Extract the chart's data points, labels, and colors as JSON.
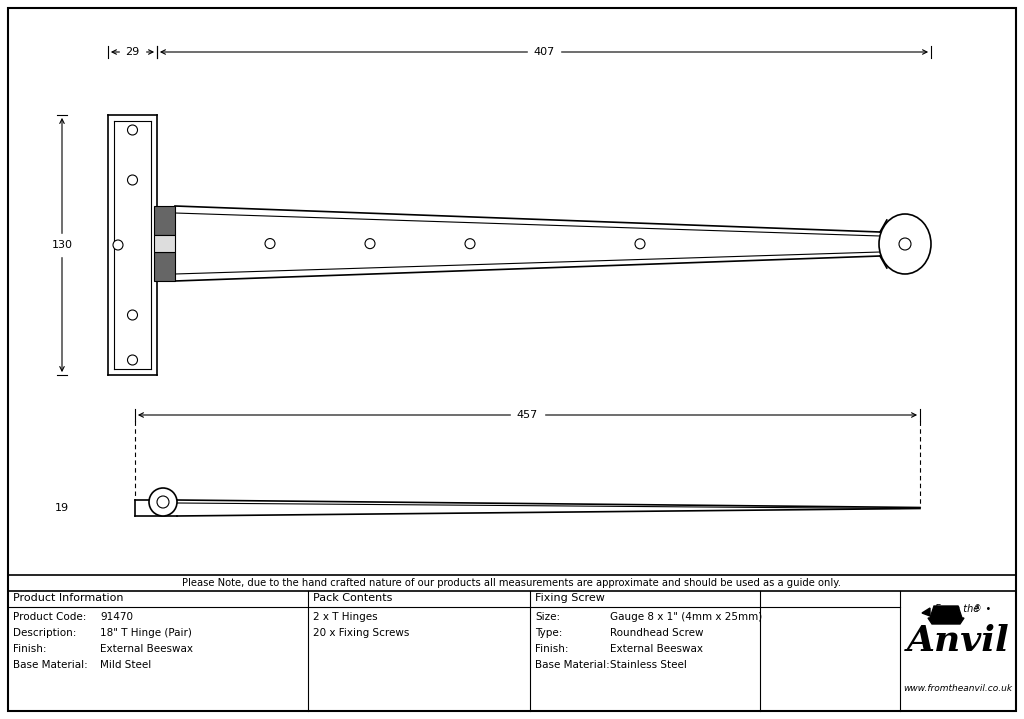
{
  "bg_color": "#ffffff",
  "line_color": "#000000",
  "note_text": "Please Note, due to the hand crafted nature of our products all measurements are approximate and should be used as a guide only.",
  "product_info": {
    "header": "Product Information",
    "rows": [
      [
        "Product Code:",
        "91470"
      ],
      [
        "Description:",
        "18\" T Hinge (Pair)"
      ],
      [
        "Finish:",
        "External Beeswax"
      ],
      [
        "Base Material:",
        "Mild Steel"
      ]
    ]
  },
  "pack_contents": {
    "header": "Pack Contents",
    "rows": [
      [
        "2 x T Hinges"
      ],
      [
        "20 x Fixing Screws"
      ]
    ]
  },
  "fixing_screw": {
    "header": "Fixing Screw",
    "rows": [
      [
        "Size:",
        "Gauge 8 x 1\" (4mm x 25mm)"
      ],
      [
        "Type:",
        "Roundhead Screw"
      ],
      [
        "Finish:",
        "External Beeswax"
      ],
      [
        "Base Material:",
        "Stainless Steel"
      ]
    ]
  },
  "dim_29": "29",
  "dim_407": "407",
  "dim_130": "130",
  "dim_457": "457",
  "dim_19": "19"
}
